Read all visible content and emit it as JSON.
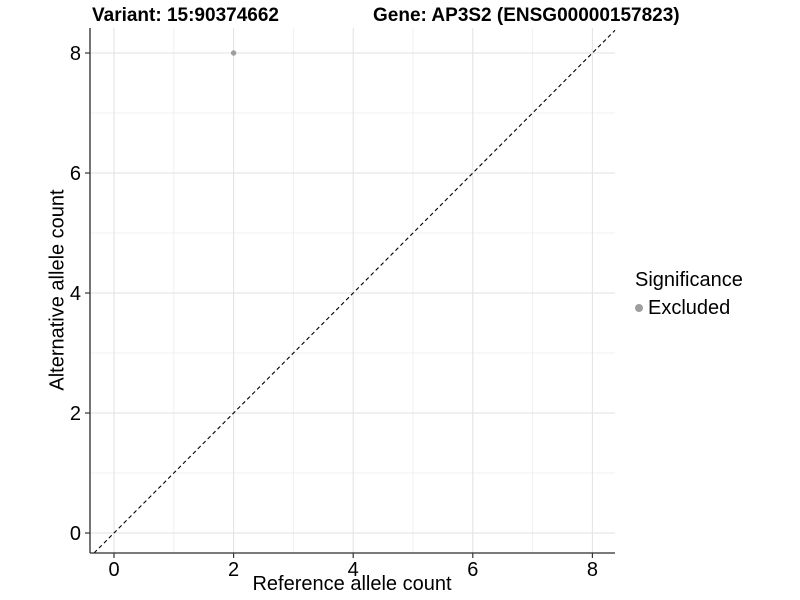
{
  "titles": {
    "variant": "Variant: 15:90374662",
    "gene": "Gene: AP3S2 (ENSG00000157823)"
  },
  "axes": {
    "x_label": "Reference allele count",
    "y_label": "Alternative allele count"
  },
  "legend": {
    "title": "Significance",
    "entries": [
      {
        "label": "Excluded",
        "color": "#9e9e9e",
        "marker": "dot-icon"
      }
    ],
    "position": "right"
  },
  "colors": {
    "background": "#ffffff",
    "grid_major": "#e2e2e2",
    "grid_minor": "#f0f0f0",
    "axis_line": "#2b2b2b",
    "tick": "#333333",
    "text": "#000000",
    "point": "#9e9e9e",
    "identity_line": "#000000"
  },
  "chart_data": {
    "type": "scatter",
    "title": "Variant: 15:90374662   Gene: AP3S2 (ENSG00000157823)",
    "xlabel": "Reference allele count",
    "ylabel": "Alternative allele count",
    "xlim": [
      -0.4,
      8.4
    ],
    "ylim": [
      -0.4,
      8.4
    ],
    "x_ticks": [
      0,
      2,
      4,
      6,
      8
    ],
    "y_ticks": [
      0,
      2,
      4,
      6,
      8
    ],
    "grid": "on",
    "legend_position": "right",
    "series": [
      {
        "name": "Excluded",
        "color": "#9e9e9e",
        "points": [
          {
            "x": 2,
            "y": 8
          }
        ]
      }
    ],
    "annotations": [
      {
        "type": "identity-line",
        "description": "y = x dashed reference line",
        "style": "dashed",
        "color": "#000000"
      }
    ]
  }
}
